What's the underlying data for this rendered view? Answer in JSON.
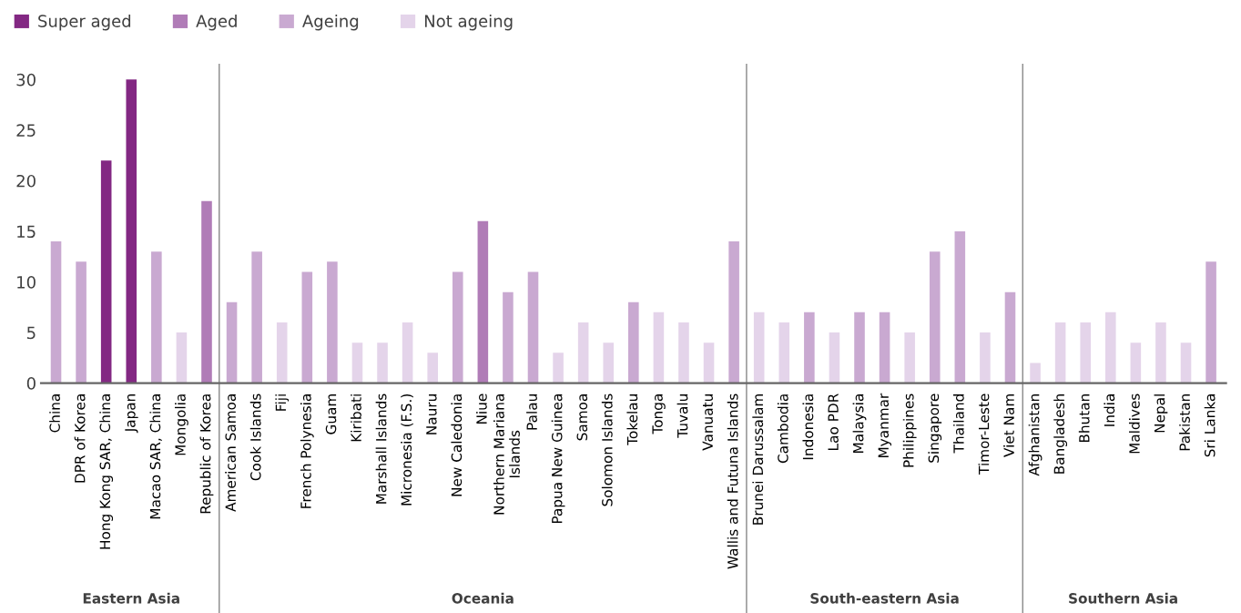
{
  "chart_data": {
    "type": "bar",
    "categories": [
      "China",
      "DPR of Korea",
      "Hong Kong SAR, China",
      "Japan",
      "Macao SAR, China",
      "Mongolia",
      "Republic of Korea",
      "American Samoa",
      "Cook Islands",
      "Fiji",
      "French Polynesia",
      "Guam",
      "Kiribati",
      "Marshall Islands",
      "Micronesia (F.S.)",
      "Nauru",
      "New Caledonia",
      "Niue",
      "Northern Mariana\nIslands",
      "Palau",
      "Papua New Guinea",
      "Samoa",
      "Solomon Islands",
      "Tokelau",
      "Tonga",
      "Tuvalu",
      "Vanuatu",
      "Wallis and Futuna Islands",
      "Brunei Darussalam",
      "Cambodia",
      "Indonesia",
      "Lao PDR",
      "Malaysia",
      "Myanmar",
      "Philippines",
      "Singapore",
      "Thailand",
      "Timor-Leste",
      "Viet Nam",
      "Afghanistan",
      "Bangladesh",
      "Bhutan",
      "India",
      "Maldives",
      "Nepal",
      "Pakistan",
      "Sri Lanka"
    ],
    "series": [
      {
        "name": "Super aged",
        "color": "#832883",
        "values": [
          null,
          null,
          22,
          30,
          null,
          null,
          null,
          null,
          null,
          null,
          null,
          null,
          null,
          null,
          null,
          null,
          null,
          null,
          null,
          null,
          null,
          null,
          null,
          null,
          null,
          null,
          null,
          null,
          null,
          null,
          null,
          null,
          null,
          null,
          null,
          null,
          null,
          null,
          null,
          null,
          null,
          null,
          null,
          null,
          null,
          null,
          null
        ]
      },
      {
        "name": "Aged",
        "color": "#b07cb7",
        "values": [
          null,
          null,
          null,
          null,
          null,
          null,
          18,
          null,
          null,
          null,
          null,
          null,
          null,
          null,
          null,
          null,
          null,
          16,
          null,
          null,
          null,
          null,
          null,
          null,
          null,
          null,
          null,
          null,
          null,
          null,
          null,
          null,
          null,
          null,
          null,
          null,
          null,
          null,
          null,
          null,
          null,
          null,
          null,
          null,
          null,
          null,
          null
        ]
      },
      {
        "name": "Ageing",
        "color": "#c9a9d1",
        "values": [
          14,
          12,
          null,
          null,
          13,
          null,
          null,
          8,
          13,
          null,
          11,
          12,
          null,
          null,
          null,
          null,
          11,
          null,
          9,
          11,
          null,
          null,
          null,
          8,
          null,
          null,
          null,
          14,
          null,
          null,
          7,
          null,
          7,
          7,
          null,
          13,
          15,
          null,
          9,
          null,
          null,
          null,
          null,
          null,
          null,
          null,
          12
        ]
      },
      {
        "name": "Not ageing",
        "color": "#e4d4ea",
        "values": [
          null,
          null,
          null,
          null,
          null,
          5,
          null,
          null,
          null,
          6,
          null,
          null,
          4,
          4,
          6,
          3,
          null,
          null,
          null,
          null,
          3,
          6,
          4,
          null,
          7,
          6,
          4,
          null,
          7,
          6,
          null,
          5,
          null,
          null,
          5,
          null,
          null,
          5,
          null,
          2,
          6,
          6,
          7,
          4,
          6,
          4,
          null
        ]
      }
    ],
    "ylim": [
      0,
      31.5
    ],
    "yticks": [
      0,
      5,
      10,
      15,
      20,
      25,
      30
    ],
    "grid": false,
    "legend": "top left",
    "annotations": [
      "Eastern Asia",
      "Oceania",
      "South-eastern Asia",
      "Southern Asia"
    ]
  }
}
